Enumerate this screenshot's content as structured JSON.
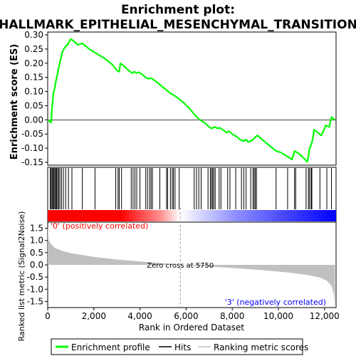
{
  "chart_data": {
    "type": "line",
    "title_line1": "Enrichment plot:",
    "title_line2": "HALLMARK_EPITHELIAL_MESENCHYMAL_TRANSITION",
    "es_panel": {
      "ylabel": "Enrichment score (ES)",
      "ylim": [
        -0.16,
        0.31
      ],
      "yticks": [
        -0.15,
        -0.1,
        -0.05,
        0.0,
        0.05,
        0.1,
        0.15,
        0.2,
        0.25,
        0.3
      ],
      "ytick_labels": [
        "-0.15",
        "-0.10",
        "-0.05",
        "0.00",
        "0.05",
        "0.10",
        "0.15",
        "0.20",
        "0.25",
        "0.30"
      ],
      "color": "#00ff00",
      "series": [
        {
          "x": 0,
          "y": 0.0
        },
        {
          "x": 150,
          "y": -0.01
        },
        {
          "x": 180,
          "y": 0.03
        },
        {
          "x": 220,
          "y": 0.07
        },
        {
          "x": 260,
          "y": 0.1
        },
        {
          "x": 300,
          "y": 0.11
        },
        {
          "x": 340,
          "y": 0.13
        },
        {
          "x": 380,
          "y": 0.145
        },
        {
          "x": 420,
          "y": 0.16
        },
        {
          "x": 470,
          "y": 0.18
        },
        {
          "x": 520,
          "y": 0.2
        },
        {
          "x": 580,
          "y": 0.22
        },
        {
          "x": 640,
          "y": 0.24
        },
        {
          "x": 700,
          "y": 0.25
        },
        {
          "x": 780,
          "y": 0.26
        },
        {
          "x": 860,
          "y": 0.265
        },
        {
          "x": 920,
          "y": 0.275
        },
        {
          "x": 1000,
          "y": 0.285
        },
        {
          "x": 1100,
          "y": 0.28
        },
        {
          "x": 1300,
          "y": 0.265
        },
        {
          "x": 1500,
          "y": 0.27
        },
        {
          "x": 1800,
          "y": 0.25
        },
        {
          "x": 2100,
          "y": 0.235
        },
        {
          "x": 2500,
          "y": 0.215
        },
        {
          "x": 2800,
          "y": 0.195
        },
        {
          "x": 3000,
          "y": 0.175
        },
        {
          "x": 3100,
          "y": 0.17
        },
        {
          "x": 3150,
          "y": 0.2
        },
        {
          "x": 3300,
          "y": 0.19
        },
        {
          "x": 3500,
          "y": 0.175
        },
        {
          "x": 3650,
          "y": 0.165
        },
        {
          "x": 3750,
          "y": 0.17
        },
        {
          "x": 3850,
          "y": 0.165
        },
        {
          "x": 3950,
          "y": 0.168
        },
        {
          "x": 4100,
          "y": 0.16
        },
        {
          "x": 4250,
          "y": 0.15
        },
        {
          "x": 4350,
          "y": 0.145
        },
        {
          "x": 4500,
          "y": 0.147
        },
        {
          "x": 4700,
          "y": 0.135
        },
        {
          "x": 5000,
          "y": 0.115
        },
        {
          "x": 5300,
          "y": 0.095
        },
        {
          "x": 5600,
          "y": 0.08
        },
        {
          "x": 5900,
          "y": 0.06
        },
        {
          "x": 6200,
          "y": 0.035
        },
        {
          "x": 6400,
          "y": 0.015
        },
        {
          "x": 6600,
          "y": 0.0
        },
        {
          "x": 6800,
          "y": -0.01
        },
        {
          "x": 7000,
          "y": -0.025
        },
        {
          "x": 7100,
          "y": -0.03
        },
        {
          "x": 7250,
          "y": -0.025
        },
        {
          "x": 7350,
          "y": -0.03
        },
        {
          "x": 7450,
          "y": -0.028
        },
        {
          "x": 7600,
          "y": -0.035
        },
        {
          "x": 7750,
          "y": -0.045
        },
        {
          "x": 7850,
          "y": -0.04
        },
        {
          "x": 8000,
          "y": -0.05
        },
        {
          "x": 8200,
          "y": -0.06
        },
        {
          "x": 8350,
          "y": -0.07
        },
        {
          "x": 8500,
          "y": -0.075
        },
        {
          "x": 8600,
          "y": -0.07
        },
        {
          "x": 8700,
          "y": -0.078
        },
        {
          "x": 8800,
          "y": -0.075
        },
        {
          "x": 8900,
          "y": -0.07
        },
        {
          "x": 9000,
          "y": -0.06
        },
        {
          "x": 9100,
          "y": -0.055
        },
        {
          "x": 9300,
          "y": -0.07
        },
        {
          "x": 9600,
          "y": -0.09
        },
        {
          "x": 9900,
          "y": -0.11
        },
        {
          "x": 10100,
          "y": -0.115
        },
        {
          "x": 10300,
          "y": -0.125
        },
        {
          "x": 10500,
          "y": -0.135
        },
        {
          "x": 10600,
          "y": -0.14
        },
        {
          "x": 10700,
          "y": -0.11
        },
        {
          "x": 10900,
          "y": -0.12
        },
        {
          "x": 11100,
          "y": -0.135
        },
        {
          "x": 11250,
          "y": -0.148
        },
        {
          "x": 11300,
          "y": -0.13
        },
        {
          "x": 11350,
          "y": -0.1
        },
        {
          "x": 11420,
          "y": -0.09
        },
        {
          "x": 11480,
          "y": -0.07
        },
        {
          "x": 11550,
          "y": -0.035
        },
        {
          "x": 11700,
          "y": -0.045
        },
        {
          "x": 11850,
          "y": -0.055
        },
        {
          "x": 11950,
          "y": -0.04
        },
        {
          "x": 12050,
          "y": -0.02
        },
        {
          "x": 12200,
          "y": -0.025
        },
        {
          "x": 12300,
          "y": 0.01
        },
        {
          "x": 12450,
          "y": 0.0
        }
      ]
    },
    "hits_panel": {
      "hit_ranks": [
        110,
        150,
        190,
        230,
        270,
        310,
        350,
        390,
        430,
        480,
        530,
        600,
        680,
        780,
        900,
        1050,
        1500,
        2050,
        2950,
        3050,
        3100,
        3200,
        3620,
        3700,
        3780,
        3860,
        4000,
        4250,
        4330,
        4420,
        4480,
        4540,
        4860,
        5150,
        5200,
        5320,
        5400,
        5450,
        5520,
        5700,
        6350,
        6450,
        6550,
        6650,
        6950,
        7050,
        7100,
        7150,
        7200,
        7260,
        7430,
        7510,
        7800,
        7900,
        8150,
        8400,
        8500,
        8600,
        8800,
        8900,
        8950,
        9000,
        9050,
        9900,
        10400,
        10700,
        10750,
        11200,
        11300,
        11350,
        11420,
        11450,
        11800,
        12100,
        12300
      ]
    },
    "metric_panel": {
      "ylabel": "Ranked list metric (Signal2Noise)",
      "xlabel": "Rank in Ordered Dataset",
      "ylim": [
        -1.75,
        1.75
      ],
      "yticks": [
        -1.5,
        -1.0,
        -0.5,
        0.0,
        0.5,
        1.0,
        1.5
      ],
      "ytick_labels": [
        "-1.5",
        "-1.0",
        "-0.5",
        "0.0",
        "0.5",
        "1.0",
        "1.5"
      ],
      "xlim": [
        0,
        12500
      ],
      "xticks": [
        0,
        2000,
        4000,
        6000,
        8000,
        10000,
        12000
      ],
      "xtick_labels": [
        "0",
        "2,000",
        "4,000",
        "6,000",
        "8,000",
        "10,000",
        "12,000"
      ],
      "zero_cross_rank": 5750,
      "zero_cross_label": "Zero cross at 5750",
      "positive_label": "'0' (positively correlated)",
      "negative_label": "'3' (negatively correlated)",
      "positive_color": "#ff0000",
      "negative_color": "#0000ff",
      "fill_color": "#c0c0c0",
      "curve": [
        {
          "x": 0,
          "y": 1.55
        },
        {
          "x": 50,
          "y": 1.0
        },
        {
          "x": 150,
          "y": 0.85
        },
        {
          "x": 300,
          "y": 0.7
        },
        {
          "x": 600,
          "y": 0.58
        },
        {
          "x": 1000,
          "y": 0.48
        },
        {
          "x": 1500,
          "y": 0.4
        },
        {
          "x": 2000,
          "y": 0.33
        },
        {
          "x": 3000,
          "y": 0.22
        },
        {
          "x": 4000,
          "y": 0.14
        },
        {
          "x": 5000,
          "y": 0.06
        },
        {
          "x": 5750,
          "y": 0.0
        },
        {
          "x": 6500,
          "y": -0.05
        },
        {
          "x": 7500,
          "y": -0.1
        },
        {
          "x": 8500,
          "y": -0.16
        },
        {
          "x": 9500,
          "y": -0.23
        },
        {
          "x": 10500,
          "y": -0.32
        },
        {
          "x": 11300,
          "y": -0.42
        },
        {
          "x": 11800,
          "y": -0.52
        },
        {
          "x": 12100,
          "y": -0.65
        },
        {
          "x": 12300,
          "y": -0.85
        },
        {
          "x": 12400,
          "y": -1.2
        },
        {
          "x": 12450,
          "y": -1.65
        }
      ]
    },
    "legend": {
      "items": [
        {
          "label": "Enrichment profile",
          "color": "#00ff00"
        },
        {
          "label": "Hits",
          "color": "#000000"
        },
        {
          "label": "Ranking metric scores",
          "color": "#c0c0c0"
        }
      ]
    }
  }
}
